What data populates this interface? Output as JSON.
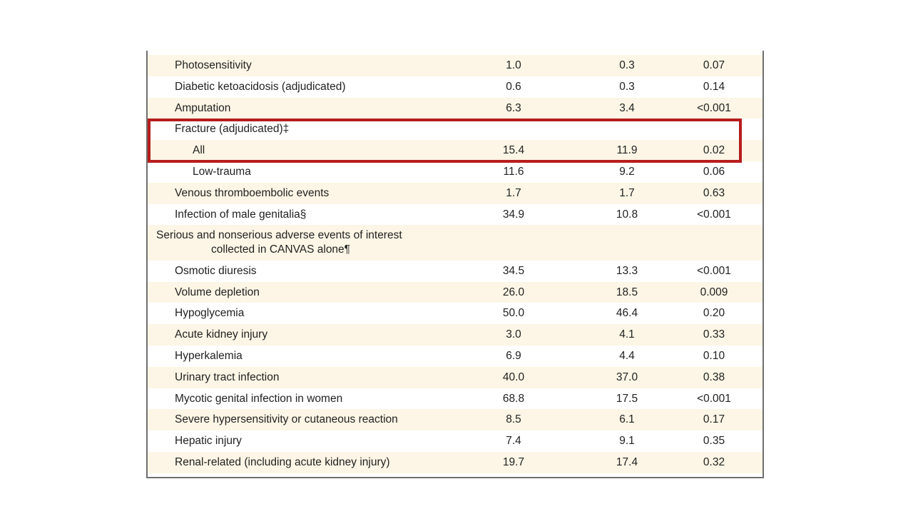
{
  "table": {
    "rows": [
      {
        "label": "Photosensitivity",
        "level": 1,
        "v1": "1.0",
        "v2": "0.3",
        "v3": "0.07",
        "shade": true
      },
      {
        "label": "Diabetic ketoacidosis (adjudicated)",
        "level": 1,
        "v1": "0.6",
        "v2": "0.3",
        "v3": "0.14",
        "shade": false
      },
      {
        "label": "Amputation",
        "level": 1,
        "v1": "6.3",
        "v2": "3.4",
        "v3": "<0.001",
        "shade": true
      },
      {
        "label": "Fracture (adjudicated)‡",
        "level": 1,
        "v1": "",
        "v2": "",
        "v3": "",
        "shade": false
      },
      {
        "label": "All",
        "level": 2,
        "v1": "15.4",
        "v2": "11.9",
        "v3": "0.02",
        "shade": true
      },
      {
        "label": "Low-trauma",
        "level": 2,
        "v1": "11.6",
        "v2": "9.2",
        "v3": "0.06",
        "shade": false
      },
      {
        "label": "Venous thromboembolic events",
        "level": 1,
        "v1": "1.7",
        "v2": "1.7",
        "v3": "0.63",
        "shade": true
      },
      {
        "label": "Infection of male genitalia§",
        "level": 1,
        "v1": "34.9",
        "v2": "10.8",
        "v3": "<0.001",
        "shade": false
      },
      {
        "label": "Serious and nonserious adverse events of interest",
        "label2": "collected in CANVAS alone¶",
        "level": 0,
        "v1": "",
        "v2": "",
        "v3": "",
        "shade": true
      },
      {
        "label": "Osmotic diuresis",
        "level": 1,
        "v1": "34.5",
        "v2": "13.3",
        "v3": "<0.001",
        "shade": false
      },
      {
        "label": "Volume depletion",
        "level": 1,
        "v1": "26.0",
        "v2": "18.5",
        "v3": "0.009",
        "shade": true
      },
      {
        "label": "Hypoglycemia",
        "level": 1,
        "v1": "50.0",
        "v2": "46.4",
        "v3": "0.20",
        "shade": false
      },
      {
        "label": "Acute kidney injury",
        "level": 1,
        "v1": "3.0",
        "v2": "4.1",
        "v3": "0.33",
        "shade": true
      },
      {
        "label": "Hyperkalemia",
        "level": 1,
        "v1": "6.9",
        "v2": "4.4",
        "v3": "0.10",
        "shade": false
      },
      {
        "label": "Urinary tract infection",
        "level": 1,
        "v1": "40.0",
        "v2": "37.0",
        "v3": "0.38",
        "shade": true
      },
      {
        "label": "Mycotic genital infection in women",
        "level": 1,
        "v1": "68.8",
        "v2": "17.5",
        "v3": "<0.001",
        "shade": false
      },
      {
        "label": "Severe hypersensitivity or cutaneous reaction",
        "level": 1,
        "v1": "8.5",
        "v2": "6.1",
        "v3": "0.17",
        "shade": true
      },
      {
        "label": "Hepatic injury",
        "level": 1,
        "v1": "7.4",
        "v2": "9.1",
        "v3": "0.35",
        "shade": false
      },
      {
        "label": "Renal-related (including acute kidney injury)",
        "level": 1,
        "v1": "19.7",
        "v2": "17.4",
        "v3": "0.32",
        "shade": true
      }
    ]
  },
  "highlight": {
    "color": "#b71c1c",
    "rows": [
      "Fracture (adjudicated)‡",
      "All"
    ]
  },
  "colors": {
    "row_shade": "#fdf6e6",
    "border": "#6f6f6f"
  }
}
